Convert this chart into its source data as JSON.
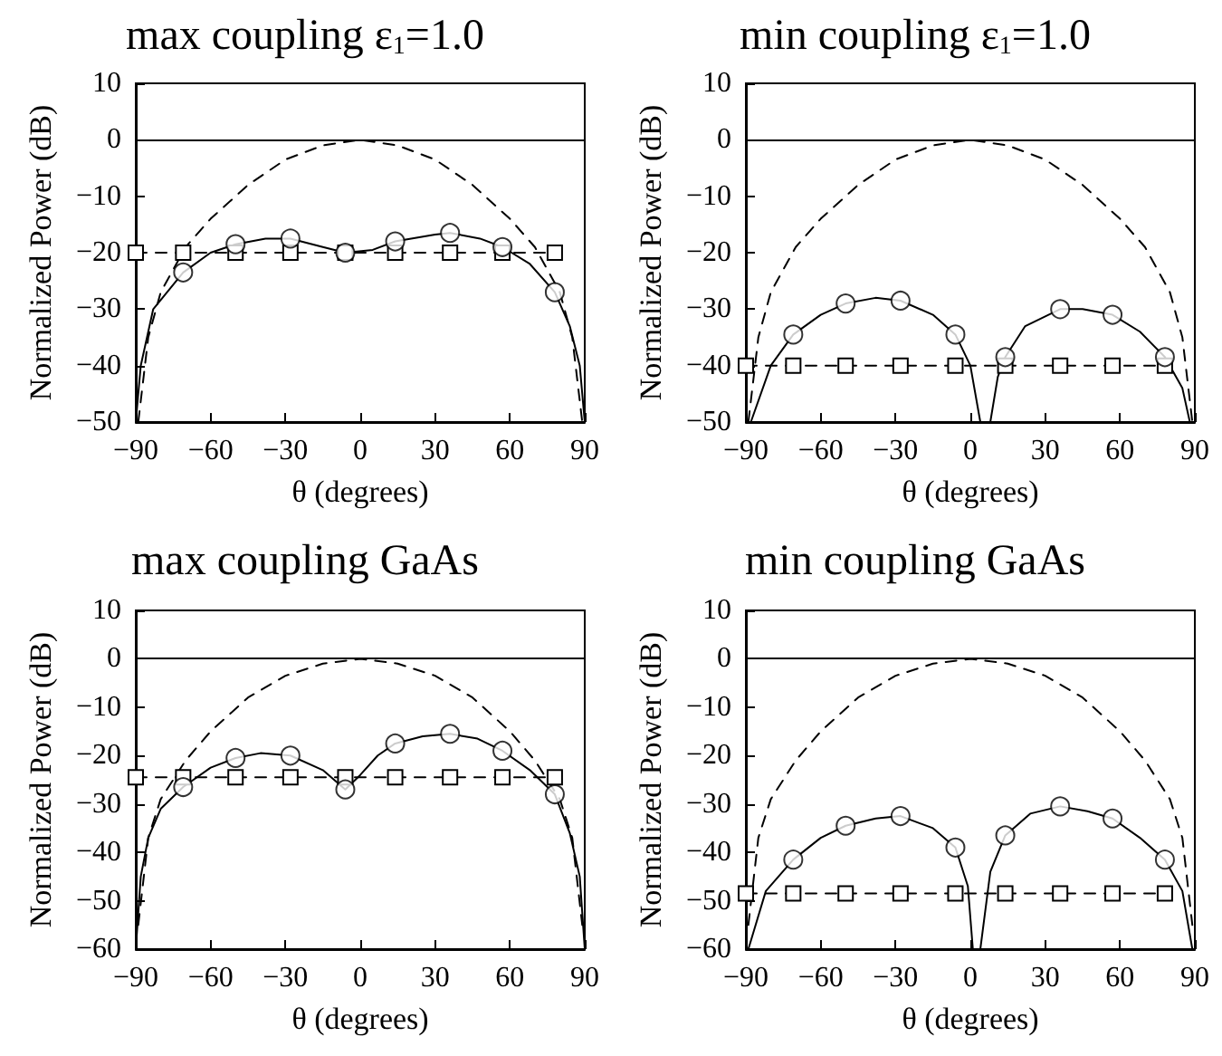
{
  "chart_data": [
    {
      "type": "line",
      "title": "max coupling ε$_{1}$=1.0",
      "xlabel": "θ (degrees)",
      "ylabel": "Normalized Power (dB)",
      "xlim": [
        -90,
        90
      ],
      "xticks": [
        -90,
        -60,
        -30,
        0,
        30,
        60,
        90
      ],
      "ylim": [
        -50,
        10
      ],
      "yticks": [
        -50,
        -40,
        -30,
        -20,
        -10,
        0,
        10
      ],
      "grid": false,
      "ref_lines": [
        {
          "axis": "y",
          "value": 0,
          "color": "#000000",
          "line_style": "solid"
        }
      ],
      "series": [
        {
          "color": "#000000",
          "marker": "none",
          "line_style": "dashed",
          "x": [
            -89,
            -85,
            -80,
            -70,
            -60,
            -45,
            -30,
            -15,
            0,
            15,
            30,
            45,
            60,
            70,
            80,
            85,
            89
          ],
          "values": [
            -50,
            -35,
            -27,
            -19,
            -14,
            -8,
            -3.5,
            -1,
            0,
            -1,
            -3.5,
            -8,
            -14,
            -19,
            -27,
            -35,
            -50
          ]
        },
        {
          "color": "#000000",
          "marker": "none",
          "line_style": "solid",
          "x": [
            -90,
            -88,
            -83,
            -71,
            -60,
            -50,
            -38,
            -28,
            -15,
            -6,
            5,
            14,
            30,
            36,
            48,
            57,
            68,
            78,
            84,
            88,
            90
          ],
          "values": [
            -50,
            -40,
            -30,
            -23.5,
            -20,
            -18.5,
            -17.5,
            -17.5,
            -19,
            -20,
            -19.5,
            -18,
            -16.8,
            -16.5,
            -17.5,
            -19,
            -22,
            -27,
            -33,
            -40,
            -50
          ]
        },
        {
          "type": "scatter",
          "color": "#000000",
          "marker": "circle",
          "x": [
            -71,
            -50,
            -28,
            -6,
            14,
            36,
            57,
            78
          ],
          "values": [
            -23.5,
            -18.5,
            -17.5,
            -20,
            -18,
            -16.5,
            -19,
            -27
          ]
        },
        {
          "color": "#000000",
          "marker": "square",
          "line_style": "dashed",
          "x": [
            -90,
            -71,
            -50,
            -28,
            -6,
            14,
            36,
            57,
            78
          ],
          "values": [
            -20,
            -20,
            -20,
            -20,
            -20,
            -20,
            -20,
            -20,
            -20
          ]
        }
      ]
    },
    {
      "type": "line",
      "title": "min coupling ε$_{1}$=1.0",
      "xlabel": "θ (degrees)",
      "ylabel": "Normalized Power (dB)",
      "xlim": [
        -90,
        90
      ],
      "xticks": [
        -90,
        -60,
        -30,
        0,
        30,
        60,
        90
      ],
      "ylim": [
        -50,
        10
      ],
      "yticks": [
        -50,
        -40,
        -30,
        -20,
        -10,
        0,
        10
      ],
      "grid": false,
      "ref_lines": [
        {
          "axis": "y",
          "value": 0,
          "color": "#000000",
          "line_style": "solid"
        }
      ],
      "series": [
        {
          "color": "#000000",
          "marker": "none",
          "line_style": "dashed",
          "x": [
            -89,
            -85,
            -80,
            -70,
            -60,
            -45,
            -30,
            -15,
            0,
            15,
            30,
            45,
            60,
            70,
            80,
            85,
            89
          ],
          "values": [
            -50,
            -35,
            -27,
            -19,
            -14,
            -8,
            -3.5,
            -1,
            0,
            -1,
            -3.5,
            -8,
            -14,
            -19,
            -27,
            -35,
            -50
          ]
        },
        {
          "color": "#000000",
          "marker": "none",
          "line_style": "solid",
          "x": [
            -88,
            -80,
            -71,
            -60,
            -50,
            -38,
            -28,
            -15,
            -6,
            0,
            4,
            6,
            8,
            11,
            14,
            22,
            36,
            45,
            57,
            68,
            78,
            85,
            88
          ],
          "values": [
            -50,
            -40,
            -34.5,
            -31,
            -29,
            -28,
            -28.5,
            -31,
            -34.5,
            -40,
            -50,
            null,
            -50,
            -42,
            -38.5,
            -33,
            -30,
            -30,
            -31,
            -34,
            -38.5,
            -44,
            -50
          ]
        },
        {
          "type": "scatter",
          "color": "#000000",
          "marker": "circle",
          "x": [
            -71,
            -50,
            -28,
            -6,
            14,
            36,
            57,
            78
          ],
          "values": [
            -34.5,
            -29,
            -28.5,
            -34.5,
            -38.5,
            -30,
            -31,
            -38.5
          ]
        },
        {
          "color": "#000000",
          "marker": "square",
          "line_style": "dashed",
          "x": [
            -90,
            -71,
            -50,
            -28,
            -6,
            14,
            36,
            57,
            78
          ],
          "values": [
            -40,
            -40,
            -40,
            -40,
            -40,
            -40,
            -40,
            -40,
            -40
          ]
        }
      ]
    },
    {
      "type": "line",
      "title": "max coupling GaAs",
      "xlabel": "θ (degrees)",
      "ylabel": "Normalized Power (dB)",
      "xlim": [
        -90,
        90
      ],
      "xticks": [
        -90,
        -60,
        -30,
        0,
        30,
        60,
        90
      ],
      "ylim": [
        -60,
        10
      ],
      "yticks": [
        -60,
        -50,
        -40,
        -30,
        -20,
        -10,
        0,
        10
      ],
      "grid": false,
      "ref_lines": [
        {
          "axis": "y",
          "value": 0,
          "color": "#000000",
          "line_style": "solid"
        }
      ],
      "series": [
        {
          "color": "#000000",
          "marker": "none",
          "line_style": "dashed",
          "x": [
            -89,
            -85,
            -80,
            -70,
            -60,
            -45,
            -30,
            -15,
            0,
            15,
            30,
            45,
            60,
            70,
            80,
            85,
            89
          ],
          "values": [
            -55,
            -37,
            -29,
            -21,
            -15,
            -8,
            -3.5,
            -1,
            0,
            -1,
            -3.5,
            -8,
            -15,
            -21,
            -29,
            -37,
            -55
          ]
        },
        {
          "color": "#000000",
          "marker": "none",
          "line_style": "solid",
          "x": [
            -90,
            -88,
            -85,
            -80,
            -71,
            -60,
            -50,
            -40,
            -28,
            -15,
            -6,
            0,
            7,
            14,
            25,
            36,
            47,
            57,
            68,
            78,
            84,
            88,
            90
          ],
          "values": [
            -60,
            -45,
            -37,
            -31,
            -26.5,
            -22.5,
            -20.5,
            -19.5,
            -20,
            -23,
            -27,
            -24,
            -20,
            -17.5,
            -16,
            -15.5,
            -16.5,
            -19,
            -23,
            -28,
            -36,
            -45,
            -60
          ]
        },
        {
          "type": "scatter",
          "color": "#000000",
          "marker": "circle",
          "x": [
            -71,
            -50,
            -28,
            -6,
            14,
            36,
            57,
            78
          ],
          "values": [
            -26.5,
            -20.5,
            -20,
            -27,
            -17.5,
            -15.5,
            -19,
            -28
          ]
        },
        {
          "color": "#000000",
          "marker": "square",
          "line_style": "dashed",
          "x": [
            -90,
            -71,
            -50,
            -28,
            -6,
            14,
            36,
            57,
            78
          ],
          "values": [
            -24.5,
            -24.5,
            -24.5,
            -24.5,
            -24.5,
            -24.5,
            -24.5,
            -24.5,
            -24.5
          ]
        }
      ]
    },
    {
      "type": "line",
      "title": "min coupling GaAs",
      "xlabel": "θ (degrees)",
      "ylabel": "Normalized Power (dB)",
      "xlim": [
        -90,
        90
      ],
      "xticks": [
        -90,
        -60,
        -30,
        0,
        30,
        60,
        90
      ],
      "ylim": [
        -60,
        10
      ],
      "yticks": [
        -60,
        -50,
        -40,
        -30,
        -20,
        -10,
        0,
        10
      ],
      "grid": false,
      "ref_lines": [
        {
          "axis": "y",
          "value": 0,
          "color": "#000000",
          "line_style": "solid"
        }
      ],
      "series": [
        {
          "color": "#000000",
          "marker": "none",
          "line_style": "dashed",
          "x": [
            -89,
            -85,
            -80,
            -70,
            -60,
            -45,
            -30,
            -15,
            0,
            15,
            30,
            45,
            60,
            70,
            80,
            85,
            89
          ],
          "values": [
            -55,
            -37,
            -29,
            -21,
            -15,
            -8,
            -3.5,
            -1,
            0,
            -1,
            -3.5,
            -8,
            -15,
            -21,
            -29,
            -37,
            -55
          ]
        },
        {
          "color": "#000000",
          "marker": "none",
          "line_style": "solid",
          "x": [
            -89,
            -82,
            -71,
            -60,
            -50,
            -38,
            -28,
            -15,
            -6,
            -1,
            1,
            2.5,
            4,
            8,
            14,
            24,
            36,
            47,
            57,
            68,
            78,
            85,
            89
          ],
          "values": [
            -60,
            -48,
            -41.5,
            -37,
            -34.5,
            -33,
            -32.5,
            -35,
            -39,
            -47,
            -60,
            null,
            -60,
            -44,
            -36.5,
            -32,
            -30.5,
            -31.5,
            -33,
            -37,
            -41.5,
            -48,
            -60
          ]
        },
        {
          "type": "scatter",
          "color": "#000000",
          "marker": "circle",
          "x": [
            -71,
            -50,
            -28,
            -6,
            14,
            36,
            57,
            78
          ],
          "values": [
            -41.5,
            -34.5,
            -32.5,
            -39,
            -36.5,
            -30.5,
            -33,
            -41.5
          ]
        },
        {
          "color": "#000000",
          "marker": "square",
          "line_style": "dashed",
          "x": [
            -90,
            -71,
            -50,
            -28,
            -6,
            14,
            36,
            57,
            78
          ],
          "values": [
            -48.5,
            -48.5,
            -48.5,
            -48.5,
            -48.5,
            -48.5,
            -48.5,
            -48.5,
            -48.5
          ]
        }
      ]
    }
  ]
}
